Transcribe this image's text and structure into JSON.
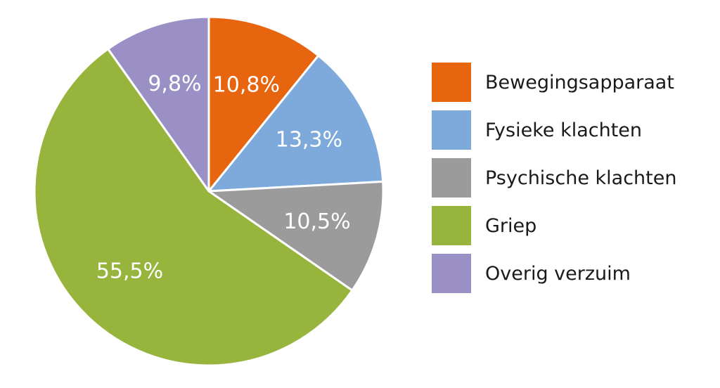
{
  "chart_data": {
    "type": "pie",
    "categories": [
      "Bewegingsapparaat",
      "Fysieke klachten",
      "Psychische klachten",
      "Griep",
      "Overig verzuim"
    ],
    "values": [
      10.8,
      13.3,
      10.5,
      55.5,
      9.8
    ],
    "labels": [
      "10,8%",
      "13,3%",
      "10,5%",
      "55,5%",
      "9,8%"
    ],
    "colors": [
      "#e8650f",
      "#7eaadb",
      "#9b9b9b",
      "#97b53c",
      "#9b90c6"
    ],
    "label_color": "#ffffff",
    "start": "12 o'clock",
    "direction": "clockwise",
    "legend_position": "right"
  }
}
